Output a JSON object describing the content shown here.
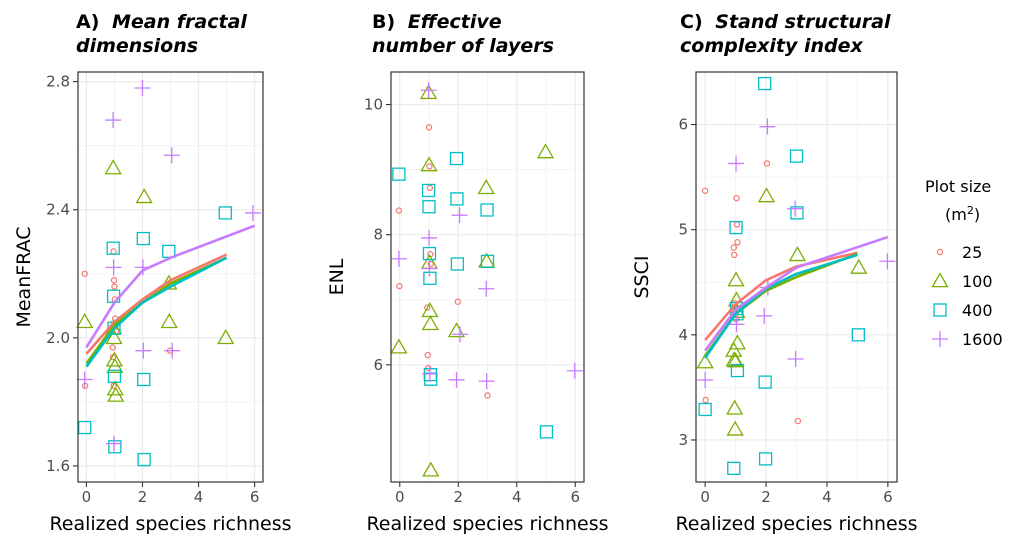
{
  "legend": {
    "title": "Plot size",
    "unit_base": "(m",
    "unit_sup": "2",
    "unit_close": ")",
    "items": [
      {
        "label": "25",
        "color": "#F8766D",
        "shape": "circle"
      },
      {
        "label": "100",
        "color": "#7CAE00",
        "shape": "triangle"
      },
      {
        "label": "400",
        "color": "#00BFC4",
        "shape": "square"
      },
      {
        "label": "1600",
        "color": "#C77CFF",
        "shape": "plus"
      }
    ]
  },
  "chart_data": [
    {
      "type": "scatter",
      "title_prefix": "A)",
      "title_lines": [
        "Mean fractal",
        "dimensions"
      ],
      "xlabel": "Realized species richness",
      "ylabel": "MeanFRAC",
      "xlim": [
        -0.3,
        6.3
      ],
      "ylim": [
        1.55,
        2.83
      ],
      "xticks": [
        0,
        2,
        4,
        6
      ],
      "yticks": [
        1.6,
        2.0,
        2.4,
        2.8
      ],
      "ytick_labels": [
        "1.6",
        "2.0",
        "2.4",
        "2.8"
      ],
      "grid": true,
      "series": [
        {
          "size": "25",
          "x": [
            0,
            0,
            1,
            1,
            1,
            1,
            1,
            1,
            1,
            1,
            1,
            1,
            3
          ],
          "y": [
            2.2,
            1.85,
            2.27,
            2.18,
            2.16,
            2.12,
            2.06,
            2.04,
            2.02,
            1.97,
            1.94,
            1.85,
            1.96
          ]
        },
        {
          "size": "100",
          "x": [
            0,
            1,
            1,
            1,
            1,
            1,
            1,
            1,
            2,
            3,
            3,
            5
          ],
          "y": [
            2.05,
            2.53,
            2.03,
            2.0,
            1.93,
            1.91,
            1.84,
            1.82,
            2.44,
            2.17,
            2.05,
            2.0
          ]
        },
        {
          "size": "400",
          "x": [
            0,
            1,
            1,
            1,
            1,
            1,
            2,
            2,
            2,
            3,
            5
          ],
          "y": [
            1.72,
            2.28,
            2.13,
            2.03,
            1.88,
            1.66,
            2.31,
            1.87,
            1.62,
            2.27,
            2.39
          ]
        },
        {
          "size": "1600",
          "x": [
            0,
            1,
            1,
            1,
            2,
            2,
            2,
            3,
            3,
            6
          ],
          "y": [
            1.87,
            2.68,
            2.22,
            1.67,
            2.78,
            2.22,
            1.96,
            2.57,
            1.96,
            2.39
          ]
        }
      ],
      "fits": [
        {
          "size": "25",
          "x": [
            0,
            1,
            2,
            3,
            5
          ],
          "y": [
            1.95,
            2.05,
            2.12,
            2.18,
            2.26
          ]
        },
        {
          "size": "100",
          "x": [
            0,
            1,
            2,
            3,
            5
          ],
          "y": [
            1.92,
            2.04,
            2.11,
            2.17,
            2.25
          ]
        },
        {
          "size": "400",
          "x": [
            0,
            1,
            2,
            3,
            5
          ],
          "y": [
            1.91,
            2.03,
            2.11,
            2.16,
            2.25
          ]
        },
        {
          "size": "1600",
          "x": [
            0,
            1,
            2,
            3,
            6
          ],
          "y": [
            1.97,
            2.11,
            2.21,
            2.25,
            2.35
          ]
        }
      ]
    },
    {
      "type": "scatter",
      "title_prefix": "B)",
      "title_lines": [
        "Effective",
        "number of layers"
      ],
      "xlabel": "Realized species richness",
      "ylabel": "ENL",
      "xlim": [
        -0.3,
        6.3
      ],
      "ylim": [
        4.2,
        10.5
      ],
      "xticks": [
        0,
        2,
        4,
        6
      ],
      "yticks": [
        6,
        8,
        10
      ],
      "ytick_labels": [
        "6",
        "8",
        "10"
      ],
      "grid": true,
      "series": [
        {
          "size": "25",
          "x": [
            0,
            0,
            1,
            1,
            1,
            1,
            1,
            1,
            1,
            1,
            2,
            3
          ],
          "y": [
            8.37,
            7.21,
            9.65,
            9.05,
            8.72,
            7.7,
            7.55,
            6.88,
            6.15,
            5.95,
            6.97,
            5.53
          ]
        },
        {
          "size": "100",
          "x": [
            0,
            1,
            1,
            1,
            1,
            1,
            1,
            2,
            3,
            3,
            5
          ],
          "y": [
            6.27,
            10.18,
            9.07,
            7.57,
            6.83,
            6.63,
            4.38,
            6.52,
            8.72,
            7.59,
            9.27
          ]
        },
        {
          "size": "400",
          "x": [
            0,
            1,
            1,
            1,
            1,
            1,
            1,
            2,
            2,
            2,
            3,
            3,
            5
          ],
          "y": [
            8.93,
            8.68,
            8.43,
            7.71,
            7.33,
            5.85,
            5.78,
            9.17,
            8.55,
            7.55,
            8.38,
            7.59,
            4.97
          ]
        },
        {
          "size": "1600",
          "x": [
            0,
            1,
            1,
            1,
            1,
            2,
            2,
            2,
            3,
            3,
            6
          ],
          "y": [
            7.63,
            10.22,
            7.95,
            7.48,
            5.86,
            8.3,
            6.47,
            5.77,
            7.17,
            5.75,
            5.91
          ]
        }
      ]
    },
    {
      "type": "scatter",
      "title_prefix": "C)",
      "title_lines": [
        "Stand structural",
        "complexity index"
      ],
      "xlabel": "Realized species richness",
      "ylabel": "SSCI",
      "xlim": [
        -0.3,
        6.3
      ],
      "ylim": [
        2.6,
        6.5
      ],
      "xticks": [
        0,
        2,
        4,
        6
      ],
      "yticks": [
        3,
        4,
        5,
        6
      ],
      "ytick_labels": [
        "3",
        "4",
        "5",
        "6"
      ],
      "grid": true,
      "series": [
        {
          "size": "25",
          "x": [
            0,
            0,
            1,
            1,
            1,
            1,
            1,
            1,
            1,
            1,
            1,
            2,
            3
          ],
          "y": [
            5.37,
            3.38,
            5.3,
            5.05,
            4.88,
            4.83,
            4.76,
            4.3,
            4.25,
            4.2,
            4.15,
            5.63,
            3.18
          ]
        },
        {
          "size": "100",
          "x": [
            0,
            1,
            1,
            1,
            1,
            1,
            1,
            1,
            1,
            1,
            2,
            3,
            5
          ],
          "y": [
            3.74,
            4.52,
            4.33,
            4.22,
            3.92,
            3.85,
            3.76,
            3.3,
            3.1,
            3.75,
            5.32,
            4.76,
            4.64
          ]
        },
        {
          "size": "400",
          "x": [
            0,
            1,
            1,
            1,
            1,
            1,
            2,
            2,
            2,
            3,
            3,
            5
          ],
          "y": [
            3.29,
            5.02,
            4.25,
            4.2,
            3.66,
            2.73,
            6.39,
            3.55,
            2.82,
            5.7,
            5.16,
            4.0
          ]
        },
        {
          "size": "1600",
          "x": [
            0,
            1,
            1,
            2,
            2,
            2,
            3,
            3,
            6
          ],
          "y": [
            3.57,
            5.63,
            4.1,
            5.98,
            4.45,
            4.18,
            5.2,
            3.77,
            4.7
          ]
        }
      ],
      "fits": [
        {
          "size": "25",
          "x": [
            0,
            1,
            2,
            3,
            5
          ],
          "y": [
            3.95,
            4.29,
            4.52,
            4.65,
            4.78
          ]
        },
        {
          "size": "100",
          "x": [
            0,
            1,
            2,
            3,
            5
          ],
          "y": [
            3.8,
            4.2,
            4.42,
            4.55,
            4.77
          ]
        },
        {
          "size": "400",
          "x": [
            0,
            1,
            2,
            3,
            5
          ],
          "y": [
            3.78,
            4.2,
            4.44,
            4.58,
            4.76
          ]
        },
        {
          "size": "1600",
          "x": [
            0,
            1,
            2,
            3,
            6
          ],
          "y": [
            3.85,
            4.24,
            4.45,
            4.64,
            4.93
          ]
        }
      ]
    }
  ]
}
